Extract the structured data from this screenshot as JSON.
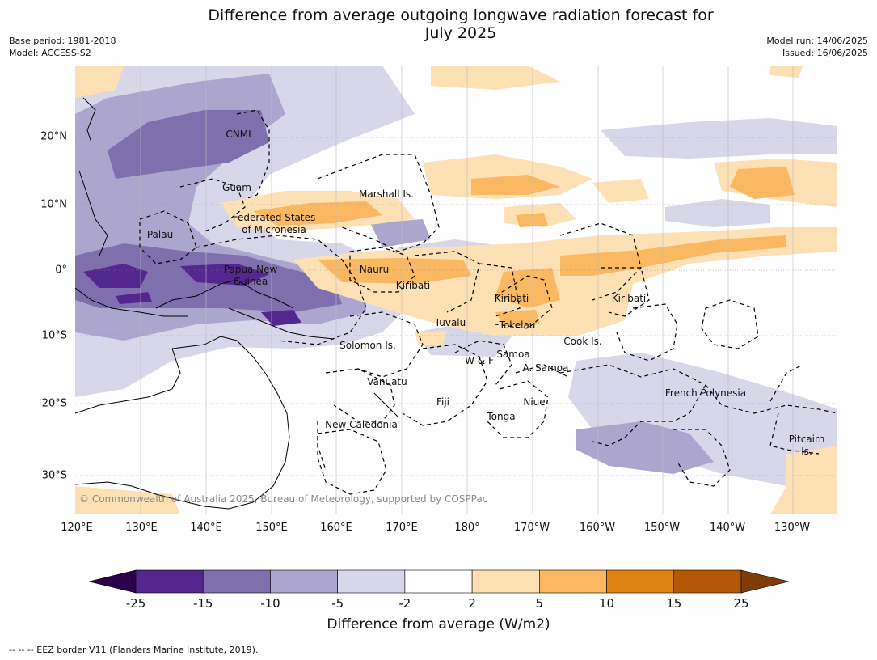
{
  "title": "Difference from average outgoing longwave radiation forecast for\nJuly 2025",
  "meta_left": [
    "Base period: 1981-2018",
    "Model: ACCESS-S2"
  ],
  "meta_right": [
    "Model run: 14/06/2025",
    "Issued: 16/06/2025"
  ],
  "lat_labels": [
    "20°N",
    "10°N",
    "0°",
    "10°S",
    "20°S",
    "30°S"
  ],
  "lon_labels": [
    "120°E",
    "130°E",
    "140°E",
    "150°E",
    "160°E",
    "170°E",
    "180°",
    "170°W",
    "160°W",
    "150°W",
    "140°W",
    "130°W"
  ],
  "regions": [
    {
      "name": "CNMI"
    },
    {
      "name": "Guam"
    },
    {
      "name": "Marshall Is."
    },
    {
      "name": "Federated States"
    },
    {
      "name": "of Micronesia"
    },
    {
      "name": "Palau"
    },
    {
      "name": "Papua New"
    },
    {
      "name": "Guinea"
    },
    {
      "name": "Nauru"
    },
    {
      "name": "Kiribati"
    },
    {
      "name": "Kiribati"
    },
    {
      "name": "Kiribati"
    },
    {
      "name": "Tuvalu"
    },
    {
      "name": "Tokelau"
    },
    {
      "name": "Solomon Is."
    },
    {
      "name": "Cook Is."
    },
    {
      "name": "Samoa"
    },
    {
      "name": "W & F"
    },
    {
      "name": "A. Samoa"
    },
    {
      "name": "Vanuatu"
    },
    {
      "name": "Fiji"
    },
    {
      "name": "Niue"
    },
    {
      "name": "French Polynesia"
    },
    {
      "name": "Tonga"
    },
    {
      "name": "New Caledonia"
    },
    {
      "name": "Pitcairn"
    },
    {
      "name": "Is."
    }
  ],
  "copyright": "© Commonwealth of Australia 2025, Bureau of Meteorology, supported by COSPPac",
  "colorbar": {
    "label": "Difference from average (W/m2)",
    "ticks": [
      "-25",
      "-15",
      "-10",
      "-5",
      "-2",
      "2",
      "5",
      "10",
      "15",
      "25"
    ],
    "colors": [
      "#54278f",
      "#7f6fad",
      "#aca6cf",
      "#d8d7ea",
      "#ffffff",
      "#fde0b4",
      "#fbb862",
      "#e08214",
      "#b35806"
    ],
    "under_color": "#2d004b",
    "over_color": "#7f3b08"
  },
  "footer": "--  --  -- EEZ border V11 (Flanders Marine Institute, 2019)."
}
